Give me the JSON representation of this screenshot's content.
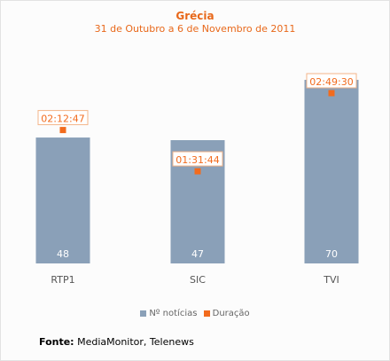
{
  "chart_data": {
    "type": "bar",
    "title": "Grécia",
    "subtitle": "31 de Outubro a 6 de Novembro de 2011",
    "categories": [
      "RTP1",
      "SIC",
      "TVI"
    ],
    "series": [
      {
        "name": "Nº notícias",
        "type": "bar",
        "color": "#8aa0b8",
        "values": [
          48,
          47,
          70
        ]
      },
      {
        "name": "Duração",
        "type": "scatter",
        "color": "#f26b1d",
        "values": [
          "02:12:47",
          "01:31:44",
          "02:49:30"
        ],
        "seconds": [
          7967,
          5504,
          10170
        ]
      }
    ],
    "legend_position": "bottom",
    "grid": false
  },
  "source": {
    "label": "Fonte:",
    "text": "MediaMonitor, Telenews"
  }
}
